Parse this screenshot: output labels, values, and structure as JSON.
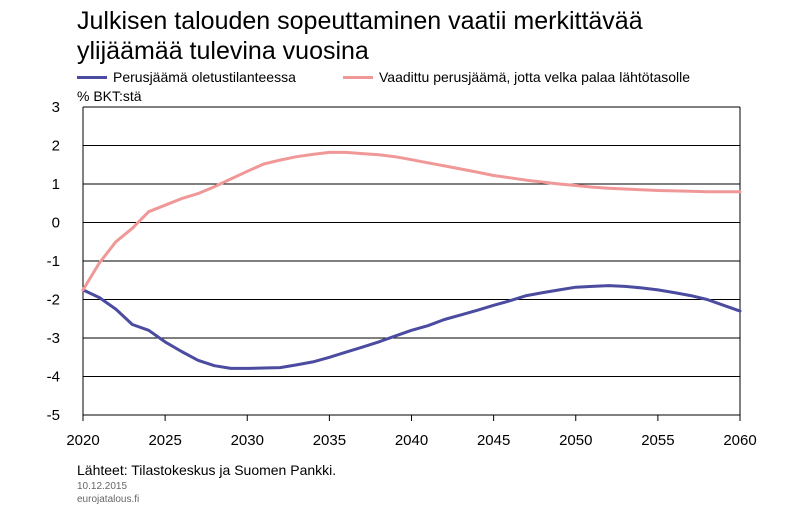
{
  "title_line1": "Julkisen talouden sopeuttaminen vaatii merkittävää",
  "title_line2": "ylijäämää tulevina vuosina",
  "unit_label": "% BKT:stä",
  "source": "Lähteet: Tilastokeskus ja Suomen Pankki.",
  "date": "10.12.2015",
  "site": "eurojatalous.fi",
  "chart_data": {
    "type": "line",
    "xlim": [
      2020,
      2060
    ],
    "ylim": [
      -5,
      3
    ],
    "x_ticks": [
      "2020",
      "2025",
      "2030",
      "2035",
      "2040",
      "2045",
      "2050",
      "2055",
      "2060"
    ],
    "y_ticks": [
      "3",
      "2",
      "1",
      "0",
      "-1",
      "-2",
      "-3",
      "-4",
      "-5"
    ],
    "grid": "horizontal",
    "legend_position": "top",
    "x": [
      2020,
      2021,
      2022,
      2023,
      2024,
      2025,
      2026,
      2027,
      2028,
      2029,
      2030,
      2031,
      2032,
      2033,
      2034,
      2035,
      2036,
      2037,
      2038,
      2039,
      2040,
      2041,
      2042,
      2043,
      2044,
      2045,
      2046,
      2047,
      2048,
      2049,
      2050,
      2051,
      2052,
      2053,
      2054,
      2055,
      2056,
      2057,
      2058,
      2059,
      2060
    ],
    "series": [
      {
        "name": "Perusjäämä oletustilanteessa",
        "color": "#4b4ba0",
        "values": [
          -1.75,
          -1.95,
          -2.25,
          -2.65,
          -2.8,
          -3.1,
          -3.35,
          -3.58,
          -3.72,
          -3.79,
          -3.79,
          -3.78,
          -3.77,
          -3.7,
          -3.62,
          -3.5,
          -3.37,
          -3.24,
          -3.1,
          -2.95,
          -2.8,
          -2.68,
          -2.52,
          -2.4,
          -2.28,
          -2.15,
          -2.03,
          -1.9,
          -1.82,
          -1.75,
          -1.68,
          -1.66,
          -1.64,
          -1.66,
          -1.7,
          -1.75,
          -1.82,
          -1.9,
          -2.0,
          -2.15,
          -2.3
        ]
      },
      {
        "name": "Vaadittu perusjäämä, jotta velka palaa lähtötasolle",
        "color": "#f09898",
        "values": [
          -1.75,
          -1.05,
          -0.5,
          -0.15,
          0.28,
          0.45,
          0.62,
          0.75,
          0.93,
          1.13,
          1.33,
          1.52,
          1.62,
          1.71,
          1.77,
          1.82,
          1.82,
          1.79,
          1.76,
          1.71,
          1.63,
          1.55,
          1.47,
          1.39,
          1.31,
          1.22,
          1.16,
          1.1,
          1.05,
          1.0,
          0.96,
          0.92,
          0.89,
          0.87,
          0.85,
          0.83,
          0.82,
          0.81,
          0.8,
          0.8,
          0.8
        ]
      }
    ]
  }
}
